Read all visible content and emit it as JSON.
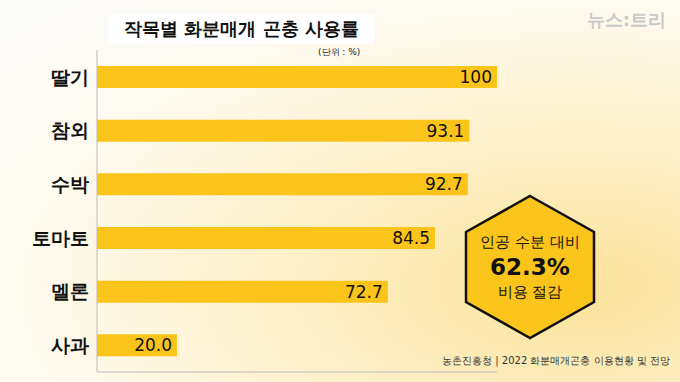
{
  "chart_data": {
    "type": "bar",
    "orientation": "horizontal",
    "title": "작목별 화분매개 곤충 사용률",
    "subtitle": "(단위 : %)",
    "categories": [
      "딸기",
      "참외",
      "수박",
      "토마토",
      "멜론",
      "사과"
    ],
    "values": [
      100,
      93.1,
      92.7,
      84.5,
      72.7,
      20
    ],
    "value_labels": [
      "100",
      "93.1",
      "92.7",
      "84.5",
      "72.7",
      "20.0"
    ],
    "color": "#fbc41a",
    "xlim": [
      0,
      100
    ],
    "grid": false,
    "data_labels": true,
    "tick_labels": "y",
    "annotations": [
      "인공 수분 대비",
      "62.3%",
      "비용 절감"
    ],
    "source": "농촌진흥청 | 2022 화분매개곤충 이용현황 및 전망",
    "logo": "뉴스:트리"
  }
}
